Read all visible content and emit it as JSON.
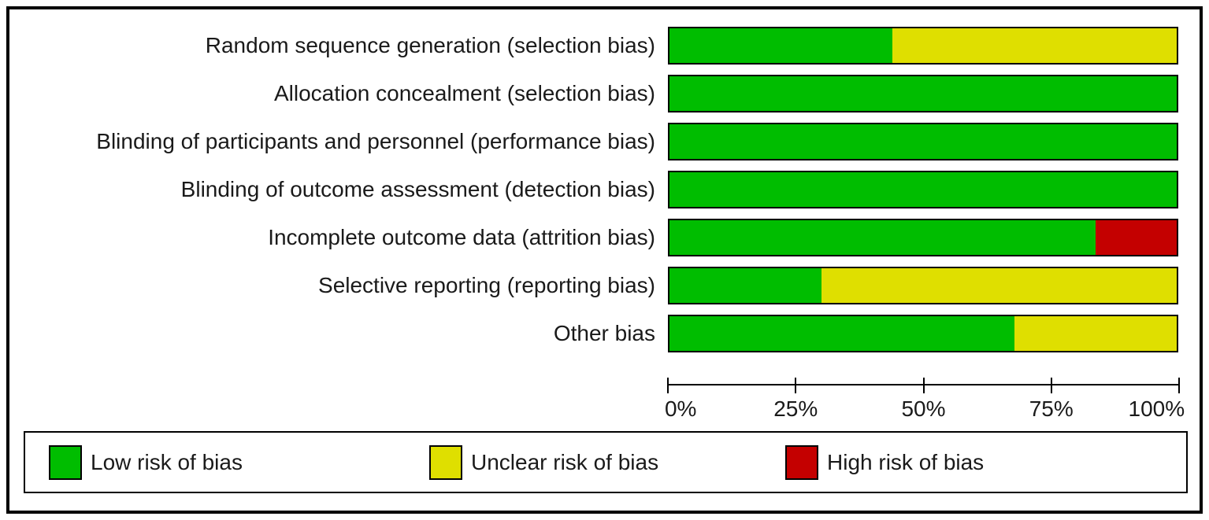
{
  "chart_data": {
    "type": "bar",
    "variant": "horizontal-stacked",
    "categories": [
      "Random sequence generation (selection bias)",
      "Allocation concealment (selection bias)",
      "Blinding of participants and personnel (performance bias)",
      "Blinding of outcome assessment (detection bias)",
      "Incomplete outcome data (attrition bias)",
      "Selective reporting (reporting bias)",
      "Other bias"
    ],
    "series": [
      {
        "name": "Low risk of bias",
        "color": "#00BD00",
        "values": [
          44,
          100,
          100,
          100,
          84,
          30,
          68
        ]
      },
      {
        "name": "Unclear risk of bias",
        "color": "#DFDF00",
        "values": [
          56,
          0,
          0,
          0,
          0,
          70,
          32
        ]
      },
      {
        "name": "High risk of bias",
        "color": "#C40000",
        "values": [
          0,
          0,
          0,
          0,
          16,
          0,
          0
        ]
      }
    ],
    "x_ticks": [
      "0%",
      "25%",
      "50%",
      "75%",
      "100%"
    ],
    "xlim": [
      0,
      100
    ],
    "grid": false,
    "legend_position": "bottom",
    "colors": {
      "low": "#00BD00",
      "unclear": "#DFDF00",
      "high": "#C40000",
      "border": "#000000"
    }
  }
}
